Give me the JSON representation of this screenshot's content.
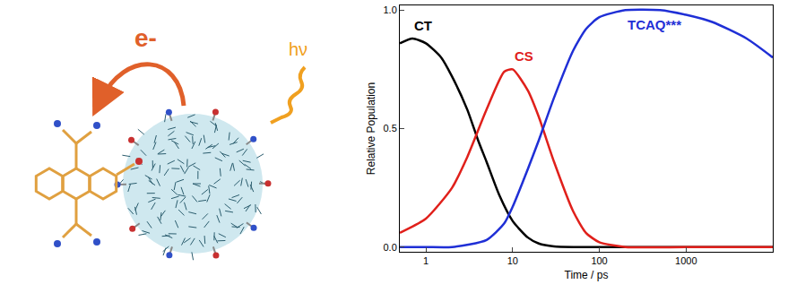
{
  "chart_data": {
    "type": "line",
    "xlabel": "Time / ps",
    "ylabel": "Relative Population",
    "log": "x",
    "grid": false,
    "xlim": [
      0.5,
      10000
    ],
    "xticks": [
      1,
      10,
      100,
      1000
    ],
    "ylim": [
      -0.02,
      1.02
    ],
    "yticks": [
      {
        "value": 0,
        "label": "0.0"
      },
      {
        "value": 0.5,
        "label": "0.5"
      },
      {
        "value": 1,
        "label": "1.0"
      }
    ],
    "series": [
      {
        "name": "CT",
        "color": "#000000",
        "x": [
          0.5,
          0.7,
          1,
          1.5,
          2,
          3,
          4,
          5,
          7,
          10,
          15,
          20,
          30,
          50,
          100,
          1000,
          10000
        ],
        "values": [
          0.86,
          0.88,
          0.86,
          0.8,
          0.72,
          0.58,
          0.45,
          0.36,
          0.22,
          0.11,
          0.04,
          0.015,
          0.003,
          0,
          0,
          0,
          0
        ]
      },
      {
        "name": "CS",
        "color": "#e0201b",
        "x": [
          0.5,
          1,
          2,
          3,
          5,
          8,
          10,
          15,
          20,
          30,
          50,
          70,
          100,
          200,
          1000,
          10000
        ],
        "values": [
          0.06,
          0.12,
          0.25,
          0.38,
          0.58,
          0.74,
          0.75,
          0.66,
          0.55,
          0.36,
          0.15,
          0.06,
          0.02,
          0,
          0,
          0
        ]
      },
      {
        "name": "TCAQ***",
        "color": "#1f2fd6",
        "x": [
          0.5,
          1,
          2,
          5,
          8,
          10,
          15,
          20,
          30,
          50,
          70,
          100,
          200,
          500,
          1000,
          2000,
          5000,
          10000
        ],
        "values": [
          0,
          0,
          0,
          0.03,
          0.1,
          0.17,
          0.33,
          0.45,
          0.63,
          0.83,
          0.92,
          0.97,
          1.0,
          1.0,
          0.98,
          0.95,
          0.88,
          0.8
        ]
      }
    ]
  },
  "illustration": {
    "labels": [
      "e-",
      "hν"
    ]
  }
}
